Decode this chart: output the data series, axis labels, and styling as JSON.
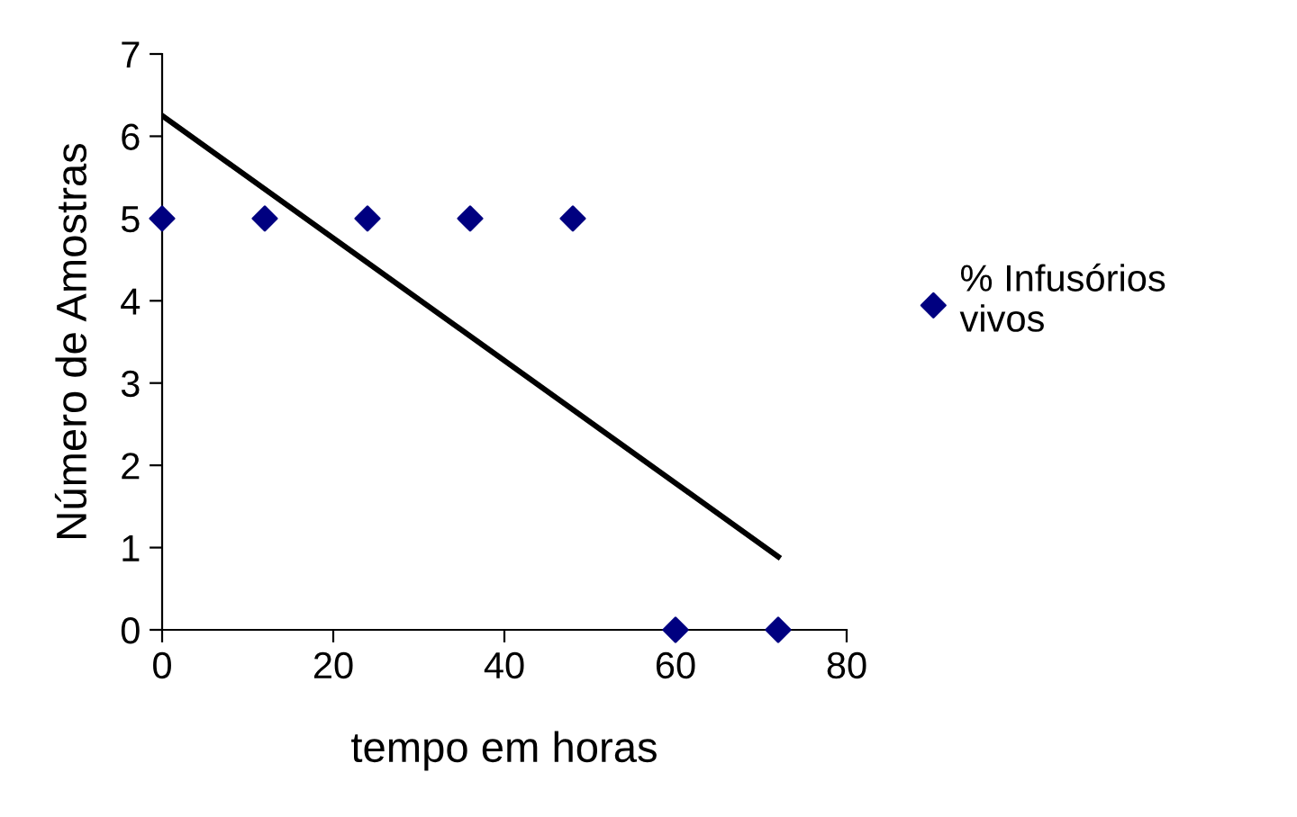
{
  "chart_data": {
    "type": "scatter",
    "xlabel": "tempo em horas",
    "ylabel": "Número de Amostras",
    "x": [
      0,
      12,
      24,
      36,
      48,
      60,
      72
    ],
    "series": [
      {
        "name": "% Infusórios\nvivos",
        "color": "#000080",
        "values": [
          5,
          5,
          5,
          5,
          5,
          0,
          0
        ],
        "marker": "diamond"
      },
      {
        "type": "line",
        "x": [
          0,
          72
        ],
        "color": "#000000",
        "values": [
          6.25,
          0.89
        ]
      }
    ],
    "xlim": [
      0,
      80
    ],
    "xticks": [
      0,
      20,
      40,
      60,
      80
    ],
    "ylim": [
      0,
      7
    ],
    "yticks": [
      0,
      1,
      2,
      3,
      4,
      5,
      6,
      7
    ],
    "grid": false,
    "legend": "right"
  }
}
